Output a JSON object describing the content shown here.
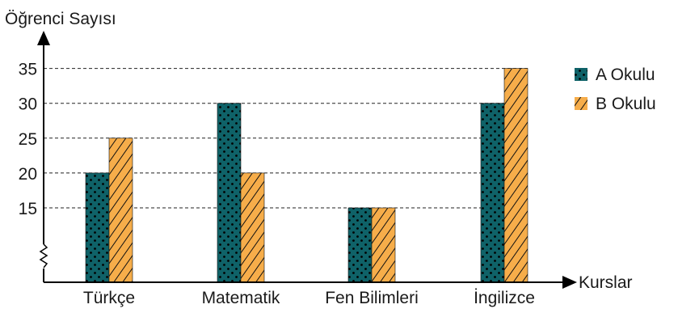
{
  "chart_data": {
    "type": "bar",
    "ylabel": "Öğrenci Sayısı",
    "xlabel": "Kurslar",
    "categories": [
      "Türkçe",
      "Matematik",
      "Fen Bilimleri",
      "İngilizce"
    ],
    "yticks": [
      15,
      20,
      25,
      30,
      35
    ],
    "axis_break": true,
    "grid": "dashed lines at tick values",
    "legend_position": "right",
    "series": [
      {
        "name": "A Okulu",
        "values": [
          20,
          30,
          15,
          30
        ],
        "color": "#0f6268",
        "pattern": "dots"
      },
      {
        "name": "B Okulu",
        "values": [
          25,
          20,
          15,
          35
        ],
        "color": "#f6ad4a",
        "pattern": "diagonal-stripes"
      }
    ]
  }
}
